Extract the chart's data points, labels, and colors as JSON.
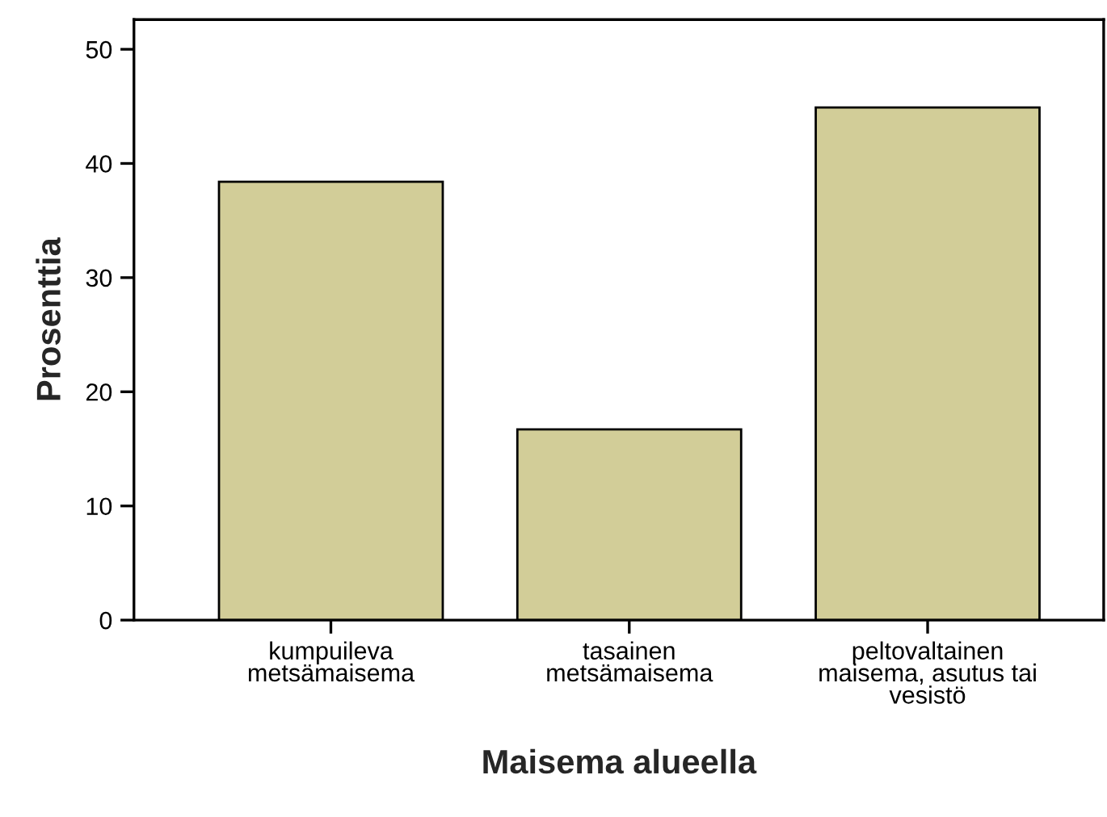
{
  "chart_data": {
    "type": "bar",
    "xlabel": "Maisema alueella",
    "ylabel": "Prosenttia",
    "categories": [
      "kumpuileva\nmetsämaisema",
      "tasainen\nmetsämaisema",
      "peltovaltainen\nmaisema, asutus tai\nvesistö"
    ],
    "values": [
      38.4,
      16.7,
      44.9
    ],
    "color": "#d2cd98",
    "ylim": [
      0,
      52.6
    ],
    "yticks": [
      0,
      10,
      20,
      30,
      40,
      50
    ],
    "grid": false,
    "legend": false
  }
}
